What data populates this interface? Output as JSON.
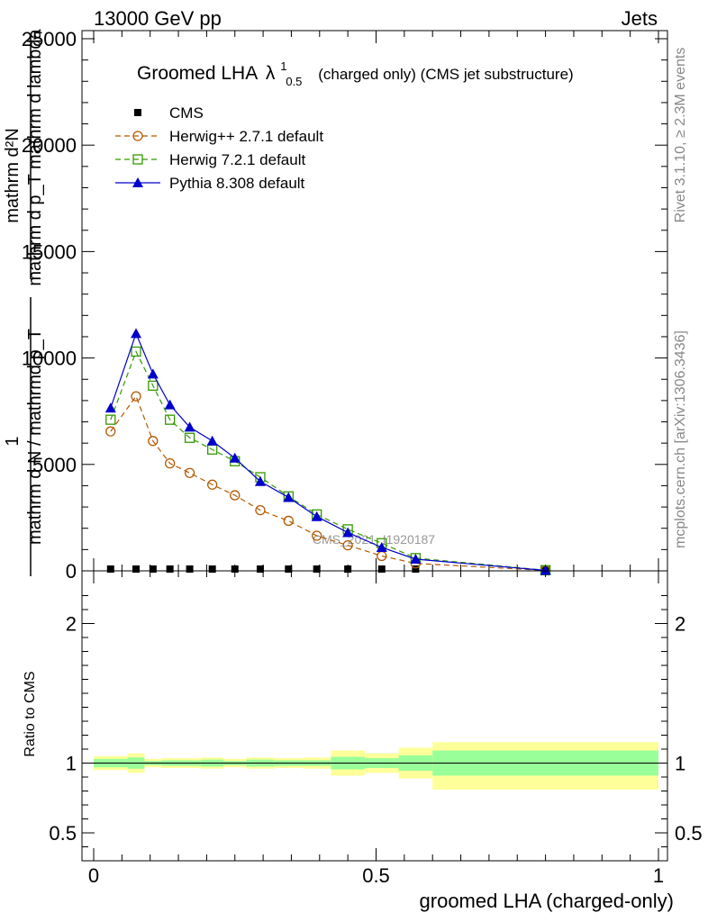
{
  "header": {
    "left": "13000 GeV pp",
    "right": "Jets"
  },
  "side": {
    "rivet": "Rivet 3.1.10, ≥ 2.3M events",
    "mcplots": "mcplots.cern.ch [arXiv:1306.3436]"
  },
  "watermark": "CMS_2021_I1920187",
  "colors": {
    "herwigpp": "#b35900",
    "herwig7": "#339900",
    "pythia": "#0000cc",
    "band_inner": "#99ff99",
    "band_outer": "#ffff99"
  },
  "chart_data": [
    {
      "type": "line",
      "title": "Groomed LHA",
      "title_symbol": "λ",
      "title_sup": "1",
      "title_sub": "0.5",
      "title_suffix": "(charged only) (CMS jet substructure)",
      "ylabel_top": "mathrm d²N",
      "ylabel_bottom": "mathrm d p_T mathrm d lambda",
      "ylabel_prefix_num": "1",
      "ylabel_prefix_den": "mathrm d N / mathrmd p_T",
      "ylim": [
        0,
        25000
      ],
      "yticks": [
        0,
        5000,
        10000,
        15000,
        20000,
        25000
      ],
      "ytick_labels": [
        "0",
        "5000",
        "10000",
        "15000",
        "20000",
        "25000"
      ],
      "xlim": [
        -0.02,
        1.0
      ],
      "legend_position": "top-left",
      "series": [
        {
          "name": "CMS",
          "style": "marker",
          "x": [
            0.03,
            0.075,
            0.105,
            0.135,
            0.17,
            0.21,
            0.25,
            0.295,
            0.345,
            0.395,
            0.45,
            0.51,
            0.57,
            0.8
          ],
          "y": [
            40,
            40,
            40,
            40,
            40,
            40,
            40,
            40,
            40,
            40,
            40,
            40,
            40,
            40
          ]
        },
        {
          "name": "Herwig++ 2.7.1 default",
          "style": "dashed-circle",
          "x": [
            0.03,
            0.075,
            0.105,
            0.135,
            0.17,
            0.21,
            0.25,
            0.295,
            0.345,
            0.395,
            0.45,
            0.51,
            0.57,
            0.8
          ],
          "y": [
            6550,
            8200,
            6100,
            5050,
            4600,
            4050,
            3550,
            2850,
            2350,
            1650,
            1200,
            700,
            350,
            20
          ]
        },
        {
          "name": "Herwig 7.2.1 default",
          "style": "dashed-square",
          "x": [
            0.03,
            0.075,
            0.105,
            0.135,
            0.17,
            0.21,
            0.25,
            0.295,
            0.345,
            0.395,
            0.45,
            0.51,
            0.57,
            0.8
          ],
          "y": [
            7100,
            10300,
            8700,
            7100,
            6250,
            5700,
            5150,
            4400,
            3500,
            2650,
            1950,
            1300,
            600,
            30
          ]
        },
        {
          "name": "Pythia 8.308 default",
          "style": "solid-triangle",
          "x": [
            0.03,
            0.075,
            0.105,
            0.135,
            0.17,
            0.21,
            0.25,
            0.295,
            0.345,
            0.395,
            0.45,
            0.51,
            0.57,
            0.8
          ],
          "y": [
            7650,
            11150,
            9250,
            7800,
            6750,
            6100,
            5300,
            4200,
            3450,
            2550,
            1800,
            1100,
            550,
            20
          ]
        }
      ]
    },
    {
      "type": "area",
      "xlabel": "groomed LHA (charged-only)",
      "ylabel": "Ratio to CMS",
      "ylim": [
        0.3,
        2.3
      ],
      "yticks": [
        0.5,
        1,
        2
      ],
      "ytick_labels": [
        "0.5",
        "1",
        "2"
      ],
      "xlim": [
        -0.02,
        1.0
      ],
      "xticks": [
        0,
        0.5,
        1
      ],
      "xtick_labels": [
        "0",
        "0.5",
        "1"
      ],
      "reference_line": 1,
      "bins": [
        {
          "lo": 0.0,
          "hi": 0.06,
          "inner": [
            0.97,
            1.03
          ],
          "outer": [
            0.95,
            1.05
          ]
        },
        {
          "lo": 0.06,
          "hi": 0.09,
          "inner": [
            0.96,
            1.04
          ],
          "outer": [
            0.93,
            1.07
          ]
        },
        {
          "lo": 0.09,
          "hi": 0.12,
          "inner": [
            0.985,
            1.015
          ],
          "outer": [
            0.97,
            1.03
          ]
        },
        {
          "lo": 0.12,
          "hi": 0.15,
          "inner": [
            0.98,
            1.02
          ],
          "outer": [
            0.965,
            1.035
          ]
        },
        {
          "lo": 0.15,
          "hi": 0.19,
          "inner": [
            0.98,
            1.02
          ],
          "outer": [
            0.965,
            1.035
          ]
        },
        {
          "lo": 0.19,
          "hi": 0.23,
          "inner": [
            0.975,
            1.025
          ],
          "outer": [
            0.96,
            1.04
          ]
        },
        {
          "lo": 0.23,
          "hi": 0.27,
          "inner": [
            0.985,
            1.015
          ],
          "outer": [
            0.97,
            1.03
          ]
        },
        {
          "lo": 0.27,
          "hi": 0.32,
          "inner": [
            0.975,
            1.025
          ],
          "outer": [
            0.96,
            1.04
          ]
        },
        {
          "lo": 0.32,
          "hi": 0.37,
          "inner": [
            0.98,
            1.02
          ],
          "outer": [
            0.965,
            1.035
          ]
        },
        {
          "lo": 0.37,
          "hi": 0.42,
          "inner": [
            0.98,
            1.02
          ],
          "outer": [
            0.96,
            1.04
          ]
        },
        {
          "lo": 0.42,
          "hi": 0.48,
          "inner": [
            0.955,
            1.045
          ],
          "outer": [
            0.91,
            1.09
          ]
        },
        {
          "lo": 0.48,
          "hi": 0.54,
          "inner": [
            0.965,
            1.035
          ],
          "outer": [
            0.93,
            1.07
          ]
        },
        {
          "lo": 0.54,
          "hi": 0.6,
          "inner": [
            0.945,
            1.055
          ],
          "outer": [
            0.89,
            1.11
          ]
        },
        {
          "lo": 0.6,
          "hi": 1.0,
          "inner": [
            0.91,
            1.09
          ],
          "outer": [
            0.81,
            1.15
          ]
        }
      ]
    }
  ]
}
